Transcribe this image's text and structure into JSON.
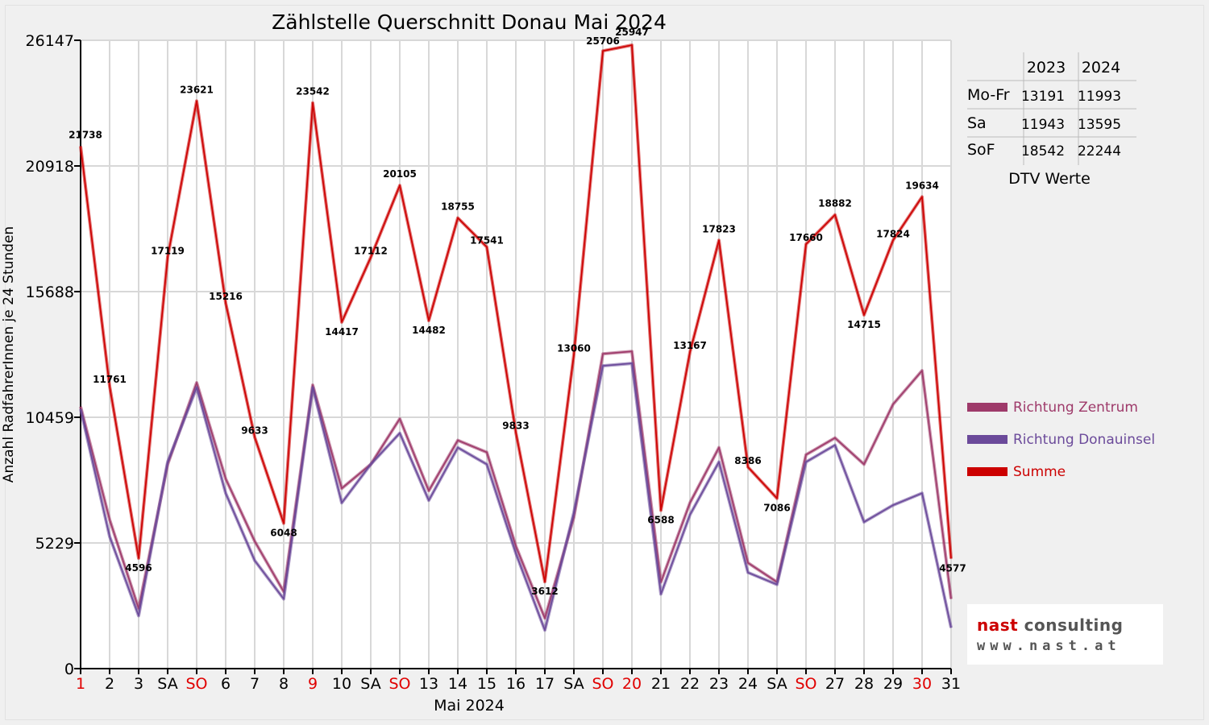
{
  "chart_data": {
    "type": "line",
    "title": "Zählstelle Querschnitt Donau Mai 2024",
    "xlabel": "Mai 2024",
    "ylabel": "Anzahl RadfahrerInnen je 24 Stunden",
    "ylim": [
      0,
      26147
    ],
    "yticks": [
      0,
      5229,
      10459,
      15688,
      20918,
      26147
    ],
    "grid": true,
    "legend_position": "right",
    "categories": [
      "1",
      "2",
      "3",
      "SA",
      "SO",
      "6",
      "7",
      "8",
      "9",
      "10",
      "SA",
      "SO",
      "13",
      "14",
      "15",
      "16",
      "17",
      "SA",
      "SO",
      "20",
      "21",
      "22",
      "23",
      "24",
      "SA",
      "SO",
      "27",
      "28",
      "29",
      "30",
      "31"
    ],
    "red_ticks": [
      0,
      4,
      8,
      11,
      18,
      19,
      25,
      29
    ],
    "series": [
      {
        "name": "Richtung Zentrum",
        "color": "#9e3a6a",
        "values": [
          10900,
          6200,
          2500,
          8500,
          11900,
          7900,
          5300,
          3200,
          11800,
          7500,
          8500,
          10400,
          7400,
          9500,
          9000,
          5100,
          2100,
          6300,
          13100,
          13200,
          3600,
          6900,
          9200,
          4400,
          3600,
          8900,
          9600,
          8500,
          11000,
          12400,
          2900
        ]
      },
      {
        "name": "Richtung Donauinsel",
        "color": "#6b4a9a",
        "values": [
          10800,
          5500,
          2200,
          8600,
          11700,
          7300,
          4500,
          2900,
          11700,
          6900,
          8500,
          9800,
          7000,
          9200,
          8500,
          4800,
          1600,
          6500,
          12600,
          12700,
          3100,
          6400,
          8600,
          4000,
          3500,
          8600,
          9300,
          6100,
          6800,
          7300,
          1700
        ]
      },
      {
        "name": "Summe",
        "color": "#cc0000",
        "values": [
          21738,
          11761,
          4596,
          17119,
          23621,
          15216,
          9633,
          6048,
          23542,
          14417,
          17112,
          20105,
          14482,
          18755,
          17541,
          9833,
          3612,
          13060,
          25706,
          25947,
          6588,
          13167,
          17823,
          8386,
          7086,
          17660,
          18882,
          14715,
          17824,
          19634,
          4577
        ]
      }
    ]
  },
  "dtv_table": {
    "caption": "DTV Werte",
    "headers": [
      "2023",
      "2024"
    ],
    "rows": [
      {
        "label": "Mo-Fr",
        "v2023": "13191",
        "v2024": "11993"
      },
      {
        "label": "Sa",
        "v2023": "11943",
        "v2024": "13595"
      },
      {
        "label": "SoF",
        "v2023": "18542",
        "v2024": "22244"
      }
    ]
  },
  "logo": {
    "name_part1": "nast",
    "name_part2": " consulting",
    "url": "www.nast.at"
  }
}
